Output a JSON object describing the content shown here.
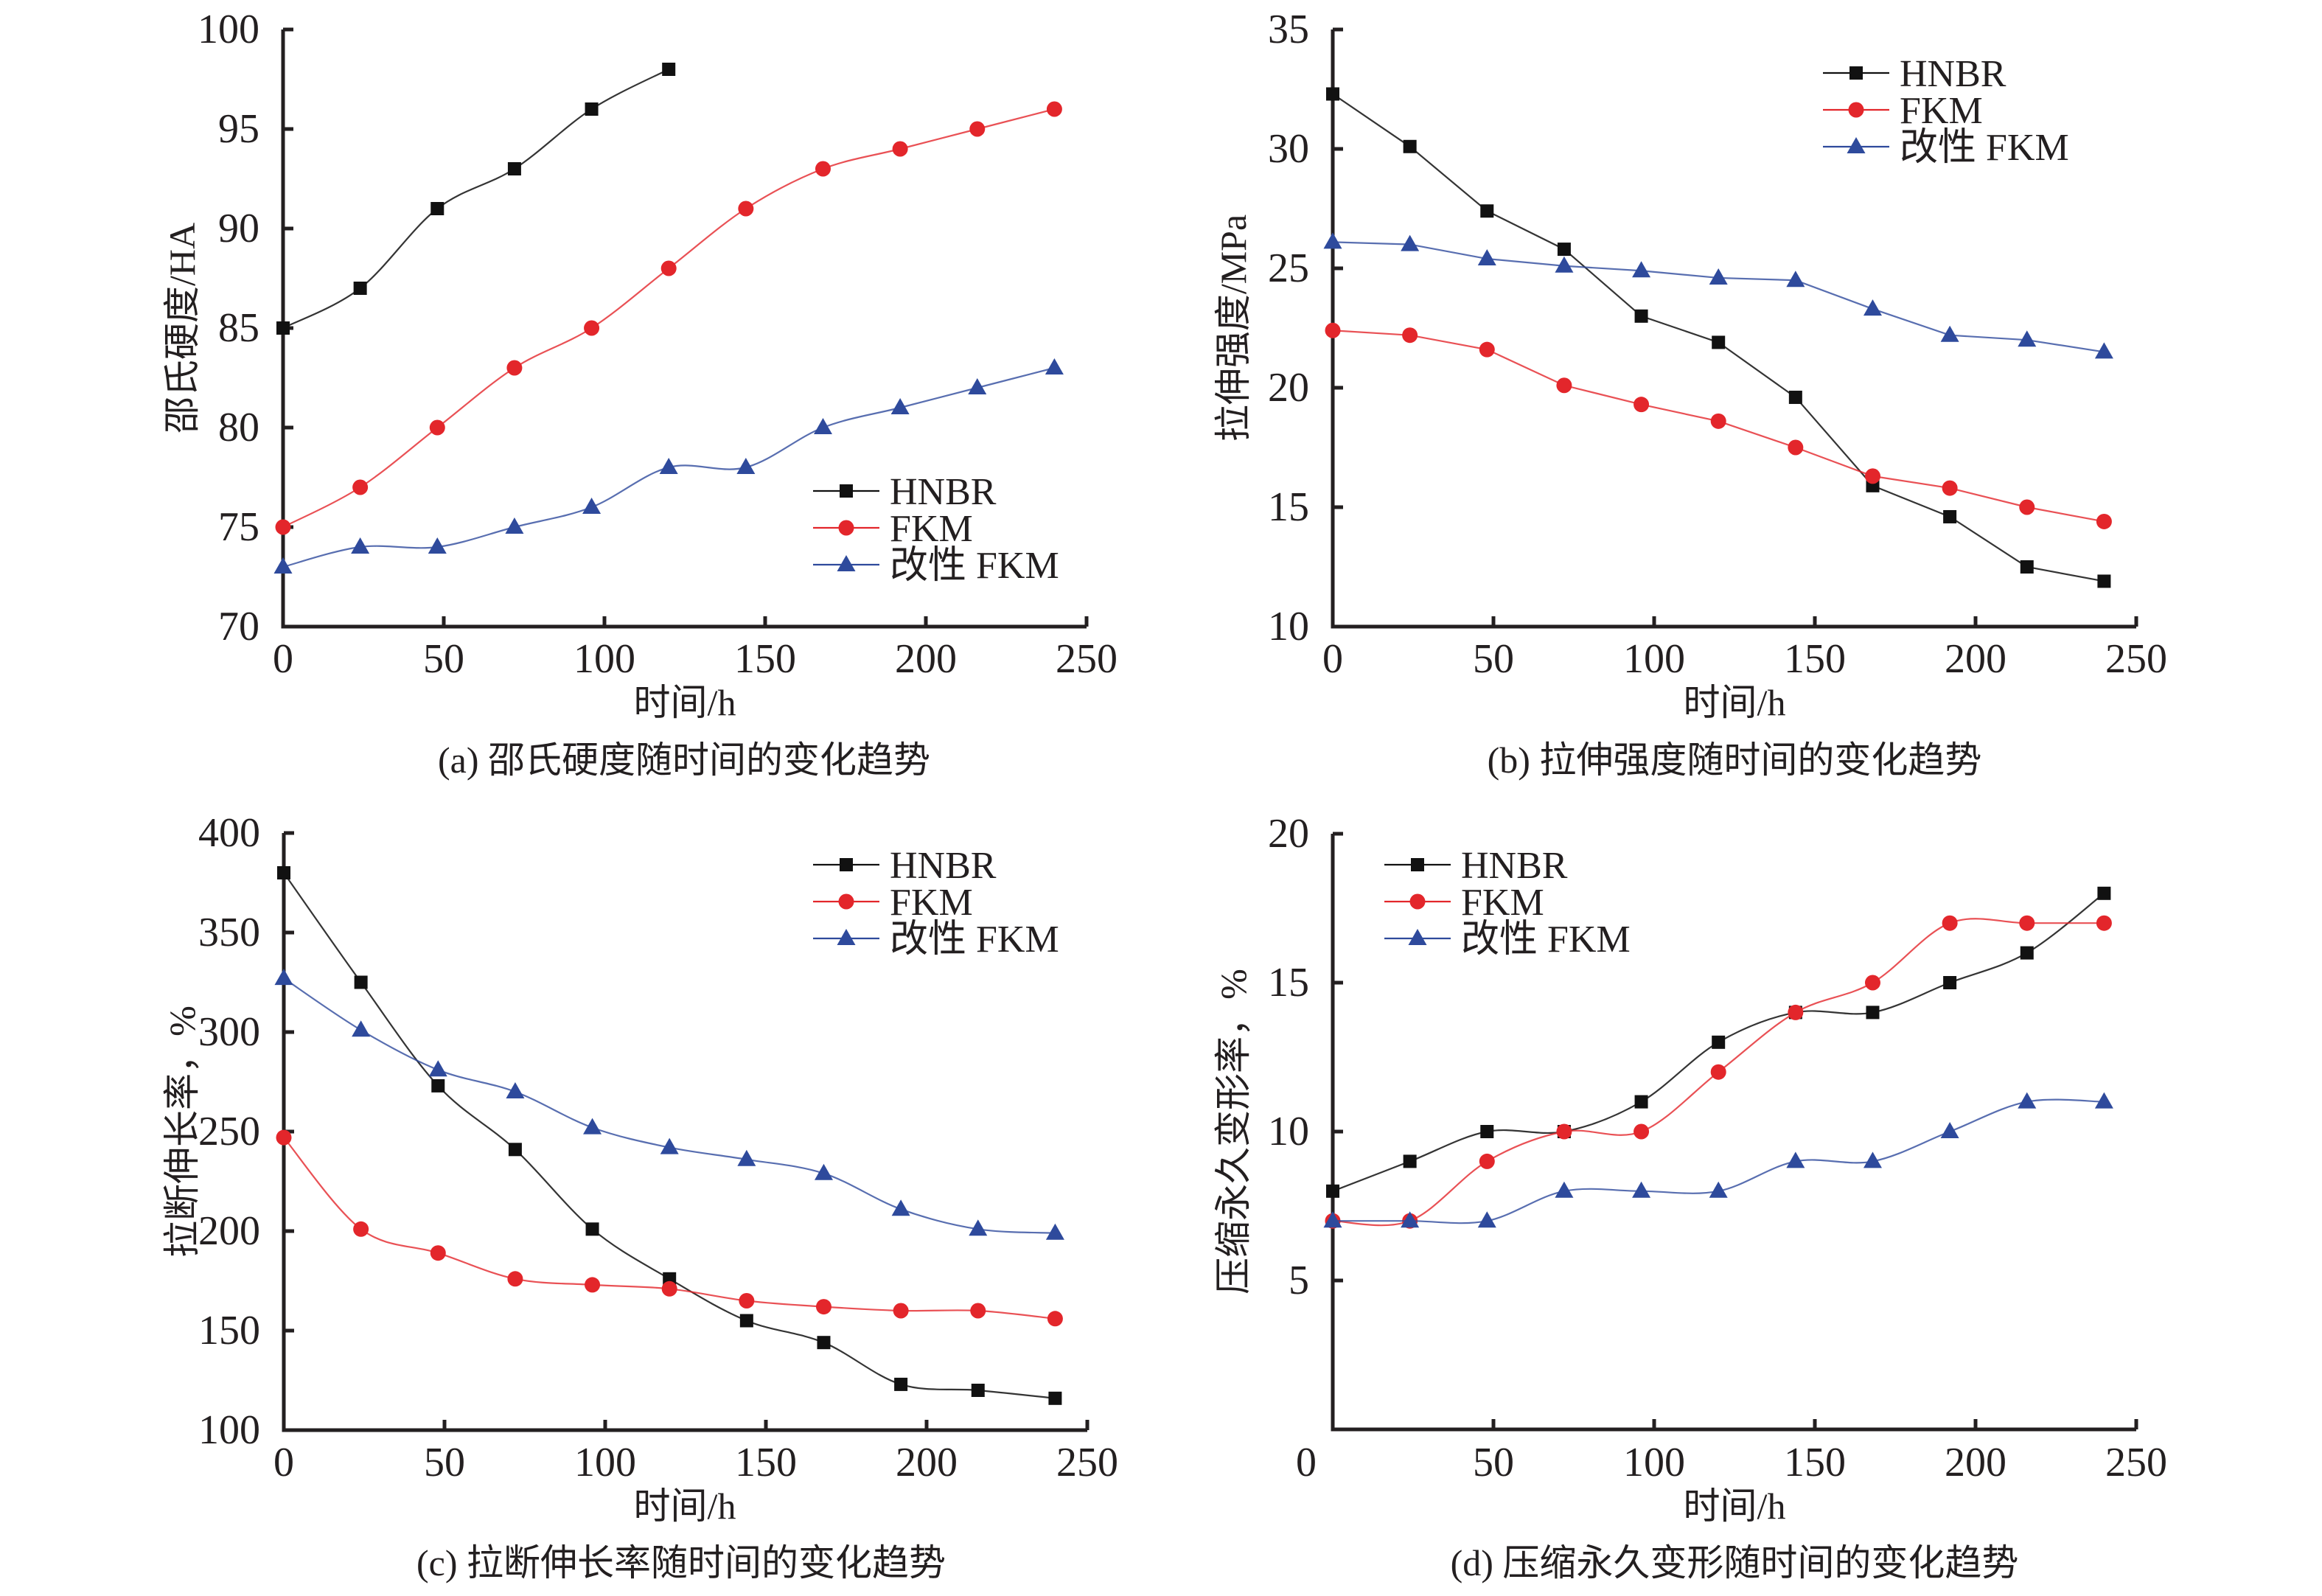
{
  "colors": {
    "HNBR": "#111111",
    "FKM": "#e3262b",
    "改性 FKM": "#2e4a9c",
    "axis": "#231f20"
  },
  "chart_data": [
    {
      "id": "a",
      "type": "line",
      "title": "(a) 邵氏硬度随时间的变化趋势",
      "xlabel": "时间/h",
      "ylabel": "邵氏硬度/HA",
      "xlim": [
        0,
        250
      ],
      "ylim": [
        70,
        100
      ],
      "xticks": [
        0,
        50,
        100,
        150,
        200,
        250
      ],
      "yticks": [
        70,
        75,
        80,
        85,
        90,
        95,
        100
      ],
      "smooth": true,
      "grid": false,
      "legend": "bottom-right",
      "series": [
        {
          "name": "HNBR",
          "marker": "square",
          "x": [
            0,
            24,
            48,
            72,
            96,
            120
          ],
          "y": [
            85,
            87,
            91,
            93,
            96,
            98
          ]
        },
        {
          "name": "FKM",
          "marker": "circle",
          "x": [
            0,
            24,
            48,
            72,
            96,
            120,
            144,
            168,
            192,
            216,
            240
          ],
          "y": [
            75,
            77,
            80,
            83,
            85,
            88,
            91,
            93,
            94,
            95,
            96
          ]
        },
        {
          "name": "改性 FKM",
          "marker": "triangle",
          "x": [
            0,
            24,
            48,
            72,
            96,
            120,
            144,
            168,
            192,
            216,
            240
          ],
          "y": [
            73,
            74,
            74,
            75,
            76,
            78,
            78,
            80,
            81,
            82,
            83
          ]
        }
      ]
    },
    {
      "id": "b",
      "type": "line",
      "title": "(b) 拉伸强度随时间的变化趋势",
      "xlabel": "时间/h",
      "ylabel": "拉伸强度/MPa",
      "xlim": [
        0,
        250
      ],
      "ylim": [
        10,
        35
      ],
      "xticks": [
        0,
        50,
        100,
        150,
        200,
        250
      ],
      "yticks": [
        10,
        15,
        20,
        25,
        30,
        35
      ],
      "smooth": false,
      "grid": false,
      "legend": "top-right",
      "series": [
        {
          "name": "HNBR",
          "marker": "square",
          "x": [
            0,
            24,
            48,
            72,
            96,
            120,
            144,
            168,
            192,
            216,
            240
          ],
          "y": [
            32.3,
            30.1,
            27.4,
            25.8,
            23.0,
            21.9,
            19.6,
            15.9,
            14.6,
            12.5,
            11.9
          ]
        },
        {
          "name": "FKM",
          "marker": "circle",
          "x": [
            0,
            24,
            48,
            72,
            96,
            120,
            144,
            168,
            192,
            216,
            240
          ],
          "y": [
            22.4,
            22.2,
            21.6,
            20.1,
            19.3,
            18.6,
            17.5,
            16.3,
            15.8,
            15.0,
            14.4
          ]
        },
        {
          "name": "改性 FKM",
          "marker": "triangle",
          "x": [
            0,
            24,
            48,
            72,
            96,
            120,
            144,
            168,
            192,
            216,
            240
          ],
          "y": [
            26.1,
            26.0,
            25.4,
            25.1,
            24.9,
            24.6,
            24.5,
            23.3,
            22.2,
            22.0,
            21.5
          ]
        }
      ]
    },
    {
      "id": "c",
      "type": "line",
      "title": "(c) 拉断伸长率随时间的变化趋势",
      "xlabel": "时间/h",
      "ylabel": "拉断伸长率，%",
      "xlim": [
        0,
        250
      ],
      "ylim": [
        100,
        400
      ],
      "xticks": [
        0,
        50,
        100,
        150,
        200,
        250
      ],
      "yticks": [
        100,
        150,
        200,
        250,
        300,
        350,
        400
      ],
      "smooth": true,
      "grid": false,
      "legend": "top-right",
      "series": [
        {
          "name": "HNBR",
          "marker": "square",
          "x": [
            0,
            24,
            48,
            72,
            96,
            120,
            144,
            168,
            192,
            216,
            240
          ],
          "y": [
            380,
            325,
            273,
            241,
            201,
            176,
            155,
            144,
            123,
            120,
            116
          ]
        },
        {
          "name": "FKM",
          "marker": "circle",
          "x": [
            0,
            24,
            48,
            72,
            96,
            120,
            144,
            168,
            192,
            216,
            240
          ],
          "y": [
            247,
            201,
            189,
            176,
            173,
            171,
            165,
            162,
            160,
            160,
            156
          ]
        },
        {
          "name": "改性 FKM",
          "marker": "triangle",
          "x": [
            0,
            24,
            48,
            72,
            96,
            120,
            144,
            168,
            192,
            216,
            240
          ],
          "y": [
            327,
            301,
            281,
            270,
            252,
            242,
            236,
            229,
            211,
            201,
            199
          ]
        }
      ]
    },
    {
      "id": "d",
      "type": "line",
      "title": "(d) 压缩永久变形随时间的变化趋势",
      "xlabel": "时间/h",
      "ylabel": "压缩永久变形率，%",
      "xlim": [
        0,
        250
      ],
      "ylim": [
        0,
        20
      ],
      "xticks": [
        0,
        50,
        100,
        150,
        200,
        250
      ],
      "yticks": [
        5,
        10,
        15,
        20
      ],
      "smooth": true,
      "grid": false,
      "legend": "top-left",
      "series": [
        {
          "name": "HNBR",
          "marker": "square",
          "x": [
            0,
            24,
            48,
            72,
            96,
            120,
            144,
            168,
            192,
            216,
            240
          ],
          "y": [
            8,
            9,
            10,
            10,
            11,
            13,
            14,
            14,
            15,
            16,
            18
          ]
        },
        {
          "name": "FKM",
          "marker": "circle",
          "x": [
            0,
            24,
            48,
            72,
            96,
            120,
            144,
            168,
            192,
            216,
            240
          ],
          "y": [
            7,
            7,
            9,
            10,
            10,
            12,
            14,
            15,
            17,
            17,
            17
          ]
        },
        {
          "name": "改性 FKM",
          "marker": "triangle",
          "x": [
            0,
            24,
            48,
            72,
            96,
            120,
            144,
            168,
            192,
            216,
            240
          ],
          "y": [
            7,
            7,
            7,
            8,
            8,
            8,
            9,
            9,
            10,
            11,
            11
          ]
        }
      ]
    }
  ]
}
